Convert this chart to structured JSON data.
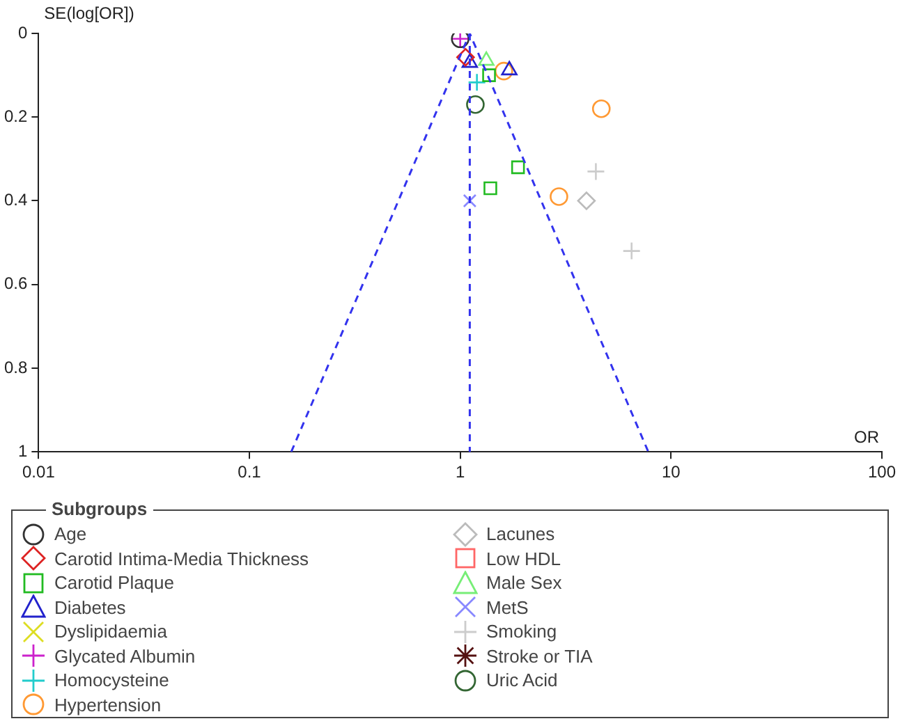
{
  "chart_data": {
    "type": "scatter",
    "xlabel": "OR",
    "ylabel": "SE(log[OR])",
    "legend_title": "Subgroups",
    "legend": "bottom",
    "log": "x",
    "grid": false,
    "xlim": [
      0.01,
      100
    ],
    "xticks": [
      0.01,
      0.1,
      1,
      10,
      100
    ],
    "ylim": [
      1,
      0
    ],
    "yticks": [
      0,
      0.2,
      0.4,
      0.6,
      0.8,
      1
    ],
    "ref_lines": [
      {
        "axis": "x",
        "value": 1.11,
        "color": "#3333ee",
        "line_style": "dashed"
      }
    ],
    "series": [
      {
        "type": "line",
        "color": "#3333ee",
        "line_style": "dashed",
        "marker": "none",
        "x": [
          0.158,
          1.11,
          7.8
        ],
        "values": [
          1,
          0,
          1
        ]
      },
      {
        "name": "Age",
        "color": "#333333",
        "marker": "circle",
        "x": [
          1.0
        ],
        "values": [
          0.013
        ]
      },
      {
        "name": "Carotid Intima-Media Thickness",
        "color": "#dd2222",
        "marker": "diamond",
        "x": [
          1.06
        ],
        "values": [
          0.057
        ]
      },
      {
        "name": "Carotid Plaque",
        "color": "#22bb22",
        "marker": "square",
        "x": [
          1.37,
          1.88,
          1.39
        ],
        "values": [
          0.1,
          0.32,
          0.37
        ]
      },
      {
        "name": "Diabetes",
        "color": "#2222cc",
        "marker": "triangle",
        "x": [
          1.11,
          1.71
        ],
        "values": [
          0.07,
          0.088
        ]
      },
      {
        "name": "Dyslipidaemia",
        "color": "#dddd22",
        "marker": "x"
      },
      {
        "name": "Glycated Albumin",
        "color": "#cc22cc",
        "marker": "cross",
        "x": [
          1.0
        ],
        "values": [
          0.013
        ]
      },
      {
        "name": "Homocysteine",
        "color": "#22cccc",
        "marker": "cross",
        "x": [
          1.2
        ],
        "values": [
          0.117
        ]
      },
      {
        "name": "Hypertension",
        "color": "#ff9933",
        "marker": "circle",
        "x": [
          1.61,
          4.67,
          2.94
        ],
        "values": [
          0.09,
          0.18,
          0.39
        ]
      },
      {
        "name": "Lacunes",
        "color": "#bbbbbb",
        "marker": "diamond",
        "x": [
          3.97
        ],
        "values": [
          0.4
        ]
      },
      {
        "name": "Low HDL",
        "color": "#ff6666",
        "marker": "square"
      },
      {
        "name": "Male Sex",
        "color": "#77ee77",
        "marker": "triangle",
        "x": [
          1.33
        ],
        "values": [
          0.065
        ]
      },
      {
        "name": "MetS",
        "color": "#8888ff",
        "marker": "x",
        "x": [
          1.11
        ],
        "values": [
          0.4
        ]
      },
      {
        "name": "Smoking",
        "color": "#cccccc",
        "marker": "cross",
        "x": [
          4.4,
          6.5
        ],
        "values": [
          0.33,
          0.52
        ]
      },
      {
        "name": "Stroke or TIA",
        "color": "#551111",
        "marker": "star"
      },
      {
        "name": "Uric Acid",
        "color": "#336633",
        "marker": "circle",
        "x": [
          1.18
        ],
        "values": [
          0.17
        ]
      }
    ]
  }
}
